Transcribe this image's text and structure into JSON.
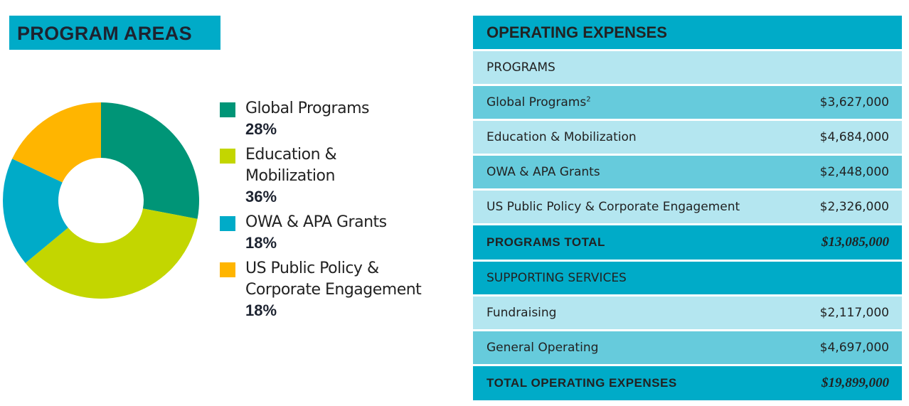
{
  "colors": {
    "header": "#00abc8",
    "light": "#b4e6f0",
    "mid": "#66cbdc",
    "green": "#009577",
    "lime": "#c3d600",
    "blue": "#00abc8",
    "orange": "#ffb500"
  },
  "program_areas": {
    "title": "PROGRAM AREAS"
  },
  "chart_data": {
    "type": "pie",
    "title": "PROGRAM AREAS",
    "donut": true,
    "categories": [
      "Global Programs",
      "Education & Mobilization",
      "OWA & APA Grants",
      "US Public Policy & Corporate Engagement"
    ],
    "values": [
      28,
      36,
      18,
      18
    ],
    "labels": [
      "28%",
      "36%",
      "18%",
      "18%"
    ],
    "colors": [
      "#009577",
      "#c3d600",
      "#00abc8",
      "#ffb500"
    ],
    "legend_lines": [
      [
        "Global Programs"
      ],
      [
        "Education &",
        "Mobilization"
      ],
      [
        "OWA & APA Grants"
      ],
      [
        "US Public Policy &",
        "Corporate Engagement"
      ]
    ],
    "legend": "right"
  },
  "expenses": {
    "title": "OPERATING EXPENSES",
    "rows": [
      {
        "label": "PROGRAMS",
        "value": "",
        "style": "light"
      },
      {
        "label": "Global Programs",
        "sup": "2",
        "value": "$3,627,000",
        "style": "mid"
      },
      {
        "label": "Education & Mobilization",
        "value": "$4,684,000",
        "style": "light"
      },
      {
        "label": "OWA & APA Grants",
        "value": "$2,448,000",
        "style": "mid"
      },
      {
        "label": "US Public Policy & Corporate Engagement",
        "value": "$2,326,000",
        "style": "light"
      },
      {
        "label": "PROGRAMS TOTAL",
        "value": "$13,085,000",
        "style": "total"
      },
      {
        "label": "SUPPORTING SERVICES",
        "value": "",
        "style": "header"
      },
      {
        "label": "Fundraising",
        "value": "$2,117,000",
        "style": "light"
      },
      {
        "label": "General Operating",
        "value": "$4,697,000",
        "style": "mid"
      },
      {
        "label": "TOTAL OPERATING EXPENSES",
        "value": "$19,899,000",
        "style": "total"
      }
    ]
  }
}
